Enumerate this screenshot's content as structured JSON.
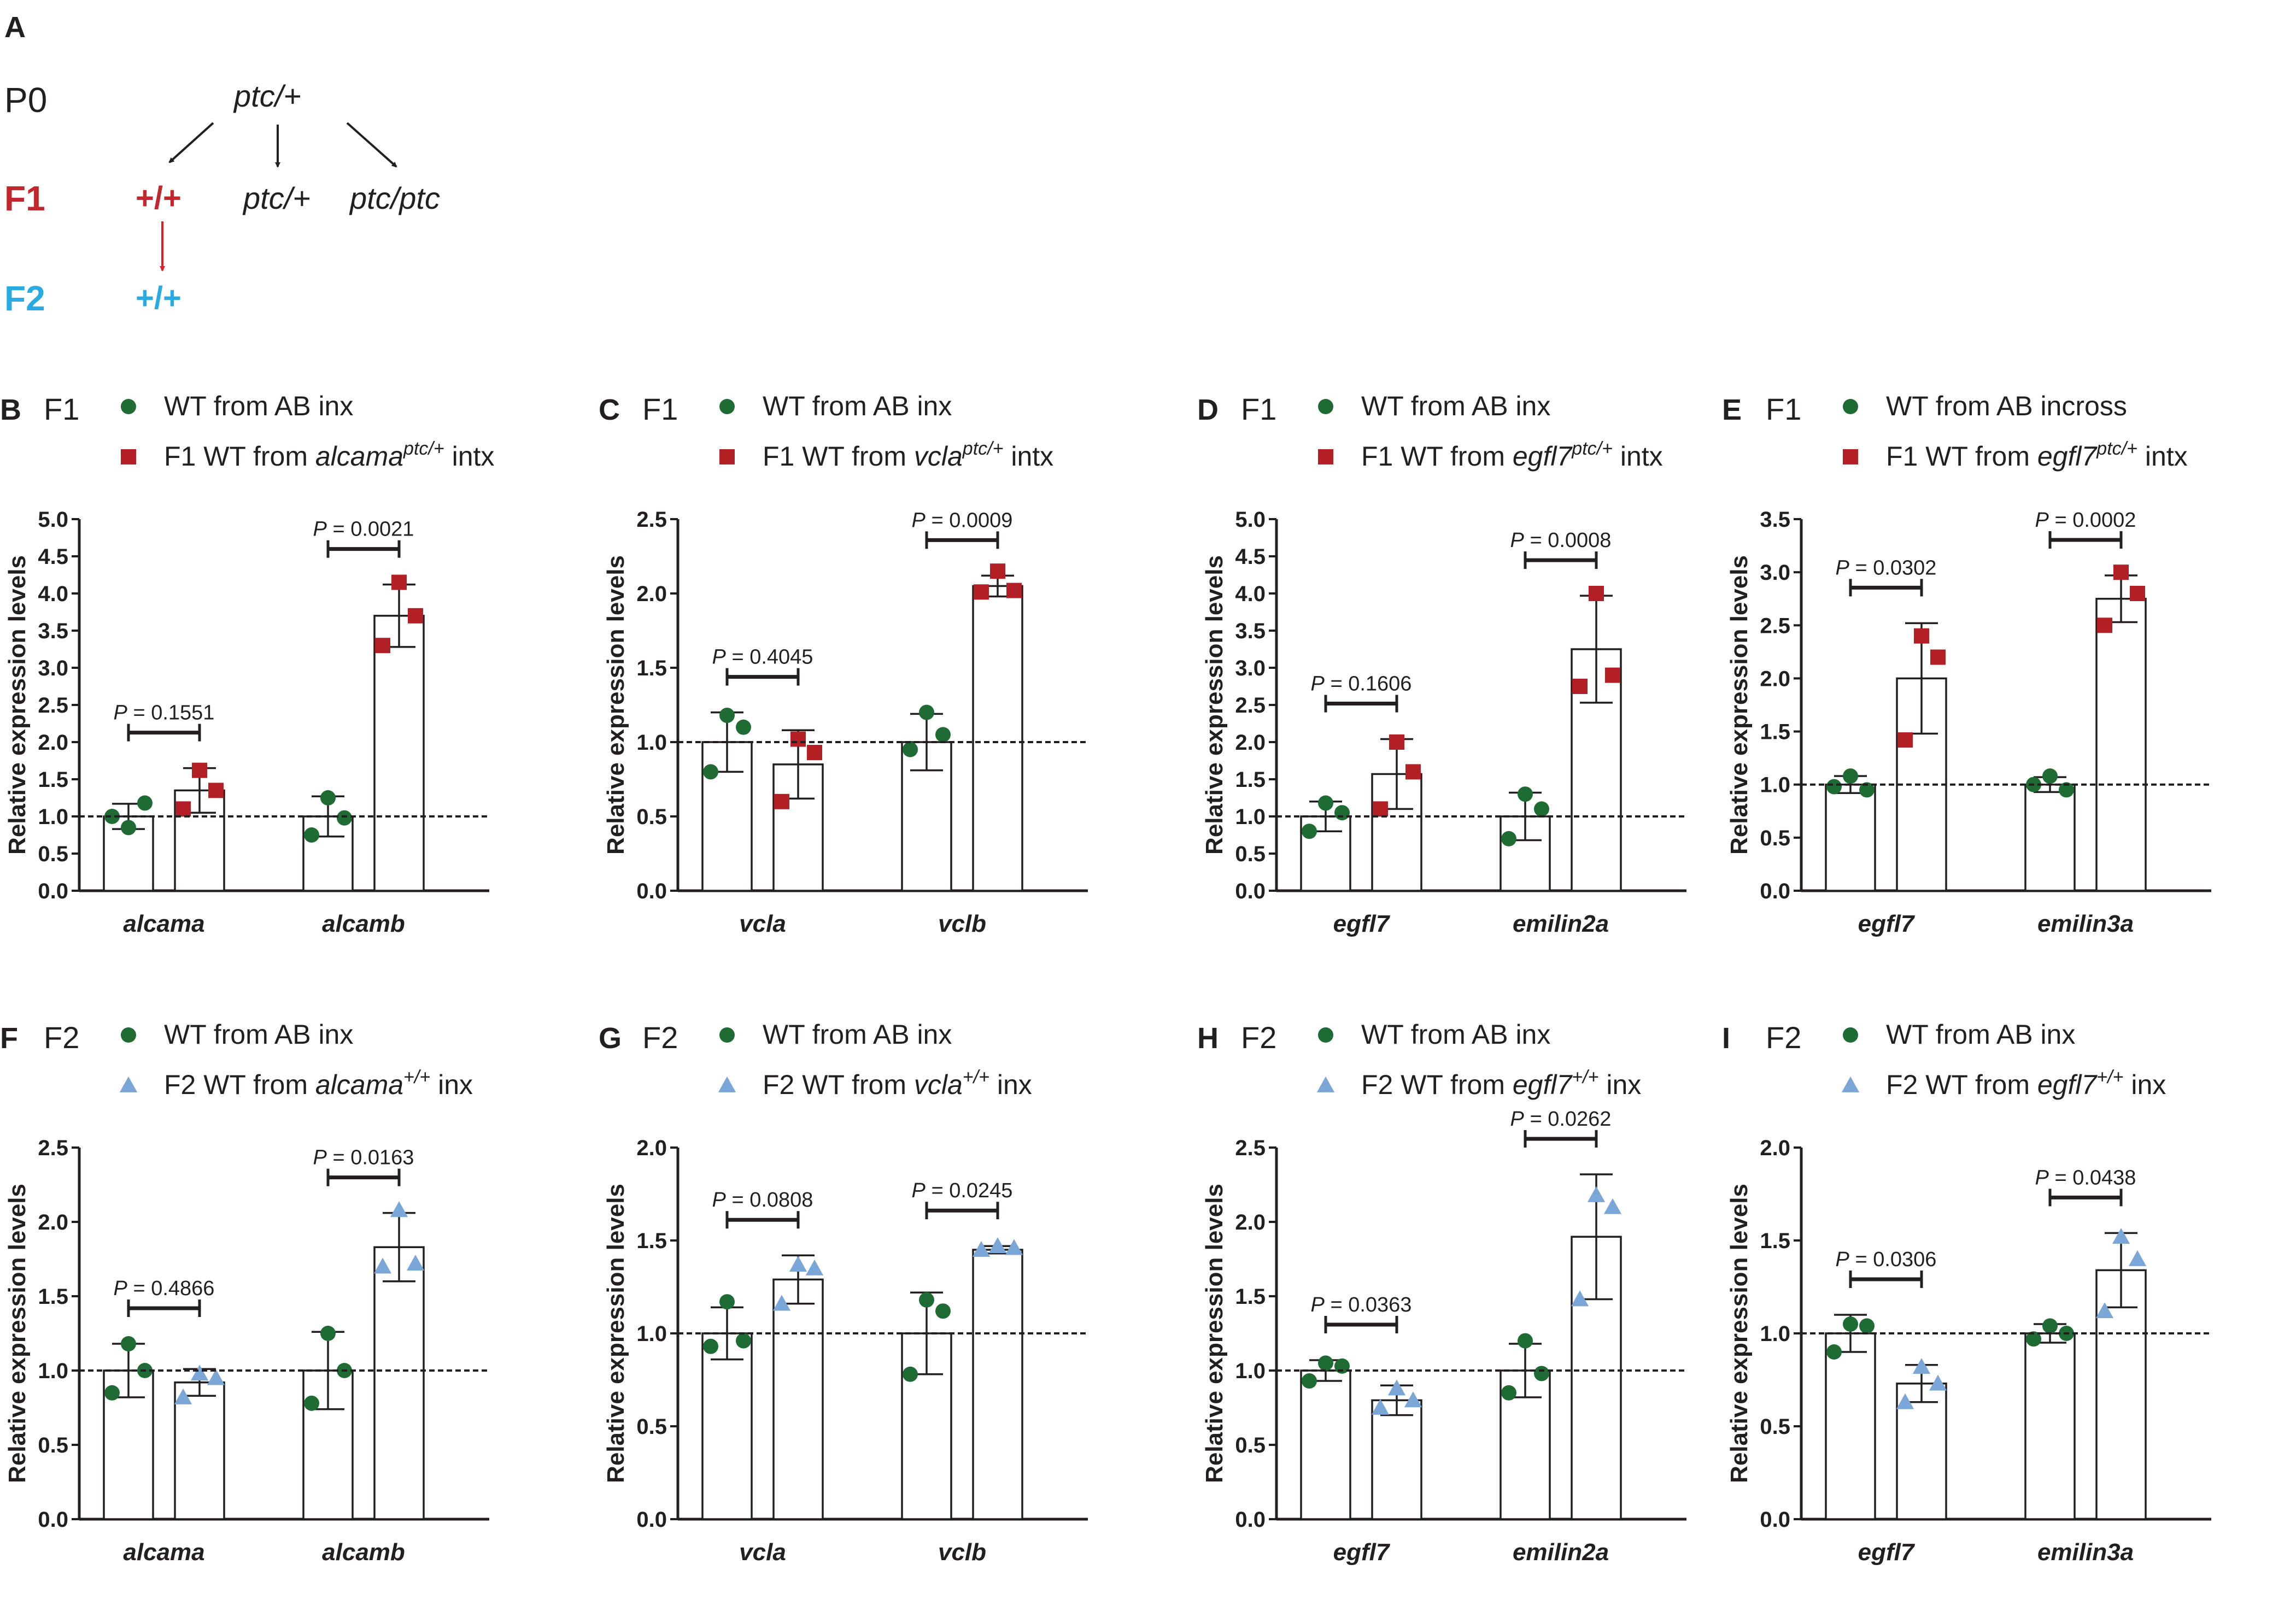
{
  "schema": {
    "label": "A",
    "rows": [
      "P0",
      "F1",
      "F2"
    ],
    "p0_genotype": "ptc/+",
    "f1_genotypes": [
      "+/+",
      "ptc/+",
      "ptc/ptc"
    ],
    "f2_genotype": "+/+",
    "colors": {
      "f1": "#c1272d",
      "f2": "#29abe2",
      "text": "#231f20"
    }
  },
  "colors": {
    "wt": "#1e6b34",
    "f1": "#b22025",
    "f2": "#7aa6d8"
  },
  "chart_data": [
    {
      "panel": "B",
      "generation": "F1",
      "type": "bar",
      "legend": [
        {
          "marker": "circle",
          "text": "WT from AB inx"
        },
        {
          "marker": "square",
          "pre": "F1 WT from ",
          "gene": "alcama",
          "sup": "ptc/+",
          "post": " intx"
        }
      ],
      "ylabel": "Relative expression levels",
      "ylim": [
        0,
        5.0
      ],
      "yticks": [
        "0.0",
        "0.5",
        "1.0",
        "1.5",
        "2.0",
        "2.5",
        "3.0",
        "3.5",
        "4.0",
        "4.5",
        "5.0"
      ],
      "categories": [
        "alcama",
        "alcamb"
      ],
      "series": [
        {
          "values": [
            1.0,
            1.0
          ],
          "sd": [
            0.17,
            0.27
          ],
          "points": [
            [
              0.85,
              1.18,
              1.0
            ],
            [
              1.25,
              0.98,
              0.75
            ]
          ]
        },
        {
          "values": [
            1.35,
            3.7
          ],
          "sd": [
            0.3,
            0.42
          ],
          "points": [
            [
              1.62,
              1.35,
              1.1
            ],
            [
              4.15,
              3.7,
              3.3
            ]
          ]
        }
      ],
      "pvalues": [
        "P = 0.1551",
        "P = 0.0021"
      ]
    },
    {
      "panel": "C",
      "generation": "F1",
      "type": "bar",
      "legend": [
        {
          "marker": "circle",
          "text": "WT from AB inx"
        },
        {
          "marker": "square",
          "pre": "F1 WT from ",
          "gene": "vcla",
          "sup": "ptc/+",
          "post": " intx"
        }
      ],
      "ylabel": "Relative expression levels",
      "ylim": [
        0,
        2.5
      ],
      "yticks": [
        "0.0",
        "0.5",
        "1.0",
        "1.5",
        "2.0",
        "2.5"
      ],
      "categories": [
        "vcla",
        "vclb"
      ],
      "series": [
        {
          "values": [
            1.0,
            1.0
          ],
          "sd": [
            0.2,
            0.19
          ],
          "points": [
            [
              1.18,
              1.1,
              0.8
            ],
            [
              1.2,
              1.05,
              0.95
            ]
          ]
        },
        {
          "values": [
            0.85,
            2.05
          ],
          "sd": [
            0.23,
            0.07
          ],
          "points": [
            [
              1.02,
              0.93,
              0.6
            ],
            [
              2.15,
              2.02,
              2.01
            ]
          ]
        }
      ],
      "pvalues": [
        "P = 0.4045",
        "P = 0.0009"
      ]
    },
    {
      "panel": "D",
      "generation": "F1",
      "type": "bar",
      "legend": [
        {
          "marker": "circle",
          "text": "WT from AB inx"
        },
        {
          "marker": "square",
          "pre": "F1 WT from ",
          "gene": "egfl7",
          "sup": "ptc/+",
          "post": " intx"
        }
      ],
      "ylabel": "Relative expression levels",
      "ylim": [
        0,
        5.0
      ],
      "yticks": [
        "0.0",
        "0.5",
        "1.0",
        "1.5",
        "2.0",
        "2.5",
        "3.0",
        "3.5",
        "4.0",
        "4.5",
        "5.0"
      ],
      "categories": [
        "egfl7",
        "emilin2a"
      ],
      "series": [
        {
          "values": [
            1.0,
            1.0
          ],
          "sd": [
            0.2,
            0.32
          ],
          "points": [
            [
              1.18,
              1.05,
              0.8
            ],
            [
              1.3,
              1.1,
              0.7
            ]
          ]
        },
        {
          "values": [
            1.57,
            3.25
          ],
          "sd": [
            0.47,
            0.72
          ],
          "points": [
            [
              2.0,
              1.6,
              1.1
            ],
            [
              4.0,
              2.9,
              2.75
            ]
          ]
        }
      ],
      "pvalues": [
        "P = 0.1606",
        "P = 0.0008"
      ]
    },
    {
      "panel": "E",
      "generation": "F1",
      "type": "bar",
      "legend": [
        {
          "marker": "circle",
          "text": "WT from AB incross"
        },
        {
          "marker": "square",
          "pre": "F1 WT from ",
          "gene": "egfl7",
          "sup": "ptc/+",
          "post": " intx"
        }
      ],
      "ylabel": "Relative expression levels",
      "ylim": [
        0,
        3.5
      ],
      "yticks": [
        "0.0",
        "0.5",
        "1.0",
        "1.5",
        "2.0",
        "2.5",
        "3.0",
        "3.5"
      ],
      "categories": [
        "egfl7",
        "emilin3a"
      ],
      "series": [
        {
          "values": [
            1.0,
            1.0
          ],
          "sd": [
            0.08,
            0.07
          ],
          "points": [
            [
              1.08,
              0.95,
              0.98
            ],
            [
              1.08,
              0.95,
              1.0
            ]
          ]
        },
        {
          "values": [
            2.0,
            2.75
          ],
          "sd": [
            0.52,
            0.22
          ],
          "points": [
            [
              2.4,
              2.2,
              1.42
            ],
            [
              3.0,
              2.8,
              2.5
            ]
          ]
        }
      ],
      "pvalues": [
        "P = 0.0302",
        "P = 0.0002"
      ]
    },
    {
      "panel": "F",
      "generation": "F2",
      "type": "bar",
      "legend": [
        {
          "marker": "circle",
          "text": "WT from AB inx"
        },
        {
          "marker": "triangle",
          "pre": "F2 WT from ",
          "gene": "alcama",
          "sup": "+/+",
          "post": " inx"
        }
      ],
      "ylabel": "Relative expression levels",
      "ylim": [
        0,
        2.5
      ],
      "yticks": [
        "0.0",
        "0.5",
        "1.0",
        "1.5",
        "2.0",
        "2.5"
      ],
      "categories": [
        "alcama",
        "alcamb"
      ],
      "series": [
        {
          "values": [
            1.0,
            1.0
          ],
          "sd": [
            0.18,
            0.26
          ],
          "points": [
            [
              1.18,
              1.0,
              0.85
            ],
            [
              1.25,
              1.0,
              0.78
            ]
          ]
        },
        {
          "values": [
            0.92,
            1.83
          ],
          "sd": [
            0.09,
            0.23
          ],
          "points": [
            [
              0.98,
              0.95,
              0.82
            ],
            [
              2.08,
              1.72,
              1.7
            ]
          ]
        }
      ],
      "pvalues": [
        "P = 0.4866",
        "P = 0.0163"
      ]
    },
    {
      "panel": "G",
      "generation": "F2",
      "type": "bar",
      "legend": [
        {
          "marker": "circle",
          "text": "WT from AB inx"
        },
        {
          "marker": "triangle",
          "pre": "F2 WT from ",
          "gene": "vcla",
          "sup": "+/+",
          "post": " inx"
        }
      ],
      "ylabel": "Relative expression levels",
      "ylim": [
        0,
        2.0
      ],
      "yticks": [
        "0.0",
        "0.5",
        "1.0",
        "1.5",
        "2.0"
      ],
      "categories": [
        "vcla",
        "vclb"
      ],
      "series": [
        {
          "values": [
            1.0,
            1.0
          ],
          "sd": [
            0.14,
            0.22
          ],
          "points": [
            [
              1.17,
              0.96,
              0.93
            ],
            [
              1.18,
              1.12,
              0.78
            ]
          ]
        },
        {
          "values": [
            1.29,
            1.45
          ],
          "sd": [
            0.13,
            0.02
          ],
          "points": [
            [
              1.37,
              1.35,
              1.16
            ],
            [
              1.47,
              1.46,
              1.45
            ]
          ]
        }
      ],
      "pvalues": [
        "P = 0.0808",
        "P = 0.0245"
      ]
    },
    {
      "panel": "H",
      "generation": "F2",
      "type": "bar",
      "legend": [
        {
          "marker": "circle",
          "text": "WT from AB inx"
        },
        {
          "marker": "triangle",
          "pre": "F2 WT from ",
          "gene": "egfl7",
          "sup": "+/+",
          "post": " inx"
        }
      ],
      "ylabel": "Relative expression levels",
      "ylim": [
        0,
        2.5
      ],
      "yticks": [
        "0.0",
        "0.5",
        "1.0",
        "1.5",
        "2.0",
        "2.5"
      ],
      "categories": [
        "egfl7",
        "emilin2a"
      ],
      "series": [
        {
          "values": [
            1.0,
            1.0
          ],
          "sd": [
            0.07,
            0.18
          ],
          "points": [
            [
              1.05,
              1.03,
              0.93
            ],
            [
              1.2,
              0.98,
              0.85
            ]
          ]
        },
        {
          "values": [
            0.8,
            1.9
          ],
          "sd": [
            0.1,
            0.42
          ],
          "points": [
            [
              0.88,
              0.8,
              0.75
            ],
            [
              2.18,
              2.1,
              1.48
            ]
          ]
        }
      ],
      "pvalues": [
        "P = 0.0363",
        "P = 0.0262"
      ]
    },
    {
      "panel": "I",
      "generation": "F2",
      "type": "bar",
      "legend": [
        {
          "marker": "circle",
          "text": "WT from AB inx"
        },
        {
          "marker": "triangle",
          "pre": "F2 WT from ",
          "gene": "egfl7",
          "sup": "+/+",
          "post": " inx"
        }
      ],
      "ylabel": "Relative expression levels",
      "ylim": [
        0,
        2.0
      ],
      "yticks": [
        "0.0",
        "0.5",
        "1.0",
        "1.5",
        "2.0"
      ],
      "categories": [
        "egfl7",
        "emilin3a"
      ],
      "series": [
        {
          "values": [
            1.0,
            1.0
          ],
          "sd": [
            0.1,
            0.05
          ],
          "points": [
            [
              1.05,
              1.04,
              0.9
            ],
            [
              1.04,
              1.0,
              0.97
            ]
          ]
        },
        {
          "values": [
            0.73,
            1.34
          ],
          "sd": [
            0.1,
            0.2
          ],
          "points": [
            [
              0.82,
              0.73,
              0.63
            ],
            [
              1.52,
              1.4,
              1.12
            ]
          ]
        }
      ],
      "pvalues": [
        "P = 0.0306",
        "P = 0.0438"
      ]
    }
  ]
}
